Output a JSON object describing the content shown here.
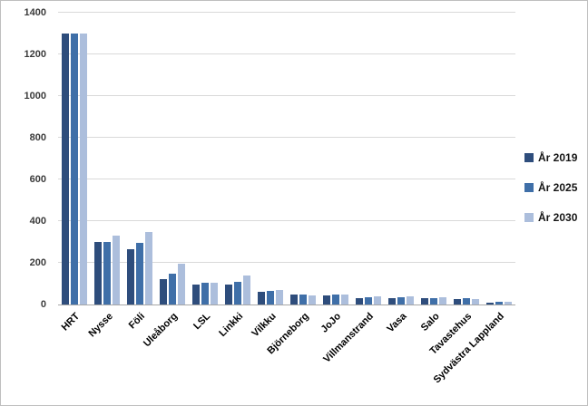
{
  "chart_data": {
    "type": "bar",
    "title": "",
    "xlabel": "",
    "ylabel": "",
    "categories": [
      "HRT",
      "Nysse",
      "Föli",
      "Uleåborg",
      "LSL",
      "Linkki",
      "Vilkku",
      "Björneborg",
      "JoJo",
      "Villmanstrand",
      "Vasa",
      "Salo",
      "Tavastehus",
      "Sydvästra Lappland"
    ],
    "series": [
      {
        "name": "År 2019",
        "color": "#2e4d7c",
        "values": [
          1300,
          300,
          265,
          120,
          95,
          95,
          60,
          50,
          45,
          30,
          30,
          30,
          25,
          10
        ]
      },
      {
        "name": "År 2025",
        "color": "#3f6fa8",
        "values": [
          1300,
          300,
          295,
          150,
          105,
          110,
          65,
          48,
          50,
          35,
          35,
          30,
          30,
          15
        ]
      },
      {
        "name": "År 2030",
        "color": "#acbedc",
        "values": [
          1300,
          330,
          350,
          195,
          105,
          140,
          70,
          45,
          50,
          40,
          40,
          35,
          25,
          12
        ]
      }
    ],
    "ylim": [
      0,
      1400
    ],
    "yticks": [
      0,
      200,
      400,
      600,
      800,
      1000,
      1200,
      1400
    ],
    "grid": true,
    "gridline_color": "#d9d9d9",
    "axis_line_color": "#a6a6a6",
    "legend_position": "right"
  }
}
